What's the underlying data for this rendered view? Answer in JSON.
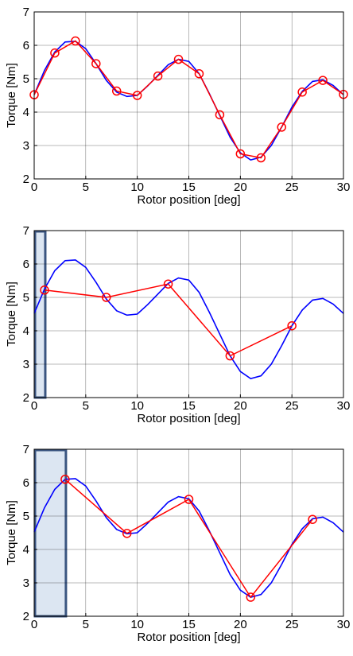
{
  "chart_data": [
    {
      "type": "line",
      "xlabel": "Rotor position [deg]",
      "ylabel": "Torque [Nm]",
      "xlim": [
        0,
        30
      ],
      "ylim": [
        2,
        7
      ],
      "xticks": [
        "0",
        "5",
        "10",
        "15",
        "20",
        "25",
        "30"
      ],
      "yticks": [
        "2",
        "3",
        "4",
        "5",
        "6",
        "7"
      ],
      "grid": true,
      "highlight": null,
      "series": [
        {
          "style": "blue-line",
          "color": "#0000ff",
          "x": [
            0,
            1,
            2,
            3,
            4,
            5,
            6,
            7,
            8,
            9,
            10,
            11,
            12,
            13,
            14,
            15,
            16,
            17,
            18,
            19,
            20,
            21,
            22,
            23,
            24,
            25,
            26,
            27,
            28,
            29,
            30
          ],
          "y": [
            4.52,
            5.25,
            5.8,
            6.1,
            6.12,
            5.9,
            5.45,
            4.95,
            4.6,
            4.47,
            4.5,
            4.78,
            5.1,
            5.42,
            5.58,
            5.52,
            5.15,
            4.55,
            3.9,
            3.25,
            2.78,
            2.57,
            2.65,
            3.0,
            3.55,
            4.15,
            4.62,
            4.92,
            4.97,
            4.8,
            4.52
          ]
        },
        {
          "style": "red-line-circles",
          "color": "#ff0000",
          "x": [
            0,
            2,
            4,
            6,
            8,
            10,
            12,
            14,
            16,
            18,
            20,
            22,
            24,
            26,
            28,
            30
          ],
          "y": [
            4.52,
            5.77,
            6.13,
            5.45,
            4.63,
            4.5,
            5.08,
            5.58,
            5.15,
            3.92,
            2.75,
            2.63,
            3.55,
            4.6,
            4.95,
            4.53
          ]
        }
      ]
    },
    {
      "type": "line",
      "xlabel": "Rotor position [deg]",
      "ylabel": "Torque [Nm]",
      "xlim": [
        0,
        30
      ],
      "ylim": [
        2,
        7
      ],
      "xticks": [
        "0",
        "5",
        "10",
        "15",
        "20",
        "25",
        "30"
      ],
      "yticks": [
        "2",
        "3",
        "4",
        "5",
        "6",
        "7"
      ],
      "grid": true,
      "highlight": {
        "x0": 0,
        "x1": 1,
        "fill": "#dce6f2",
        "stroke": "#3a5580"
      },
      "series": [
        {
          "style": "blue-line",
          "color": "#0000ff",
          "x": [
            0,
            1,
            2,
            3,
            4,
            5,
            6,
            7,
            8,
            9,
            10,
            11,
            12,
            13,
            14,
            15,
            16,
            17,
            18,
            19,
            20,
            21,
            22,
            23,
            24,
            25,
            26,
            27,
            28,
            29,
            30
          ],
          "y": [
            4.52,
            5.25,
            5.8,
            6.1,
            6.12,
            5.9,
            5.45,
            4.95,
            4.6,
            4.47,
            4.5,
            4.78,
            5.1,
            5.42,
            5.58,
            5.52,
            5.15,
            4.55,
            3.9,
            3.25,
            2.78,
            2.57,
            2.65,
            3.0,
            3.55,
            4.15,
            4.62,
            4.92,
            4.97,
            4.8,
            4.52
          ]
        },
        {
          "style": "red-line-circles",
          "color": "#ff0000",
          "x": [
            1,
            7,
            13,
            19,
            25
          ],
          "y": [
            5.22,
            5.0,
            5.4,
            3.25,
            4.15
          ]
        }
      ]
    },
    {
      "type": "line",
      "xlabel": "Rotor position [deg]",
      "ylabel": "Torque [Nm]",
      "xlim": [
        0,
        30
      ],
      "ylim": [
        2,
        7
      ],
      "xticks": [
        "0",
        "5",
        "10",
        "15",
        "20",
        "25",
        "30"
      ],
      "yticks": [
        "2",
        "3",
        "4",
        "5",
        "6",
        "7"
      ],
      "grid": true,
      "highlight": {
        "x0": 0,
        "x1": 3,
        "fill": "#dce6f2",
        "stroke": "#3a5580"
      },
      "series": [
        {
          "style": "blue-line",
          "color": "#0000ff",
          "x": [
            0,
            1,
            2,
            3,
            4,
            5,
            6,
            7,
            8,
            9,
            10,
            11,
            12,
            13,
            14,
            15,
            16,
            17,
            18,
            19,
            20,
            21,
            22,
            23,
            24,
            25,
            26,
            27,
            28,
            29,
            30
          ],
          "y": [
            4.52,
            5.25,
            5.8,
            6.1,
            6.12,
            5.9,
            5.45,
            4.95,
            4.6,
            4.47,
            4.5,
            4.78,
            5.1,
            5.42,
            5.58,
            5.52,
            5.15,
            4.55,
            3.9,
            3.25,
            2.78,
            2.57,
            2.65,
            3.0,
            3.55,
            4.15,
            4.62,
            4.92,
            4.97,
            4.8,
            4.52
          ]
        },
        {
          "style": "red-line-circles",
          "color": "#ff0000",
          "x": [
            3,
            9,
            15,
            21,
            27
          ],
          "y": [
            6.1,
            4.48,
            5.5,
            2.57,
            4.9
          ]
        }
      ]
    }
  ]
}
